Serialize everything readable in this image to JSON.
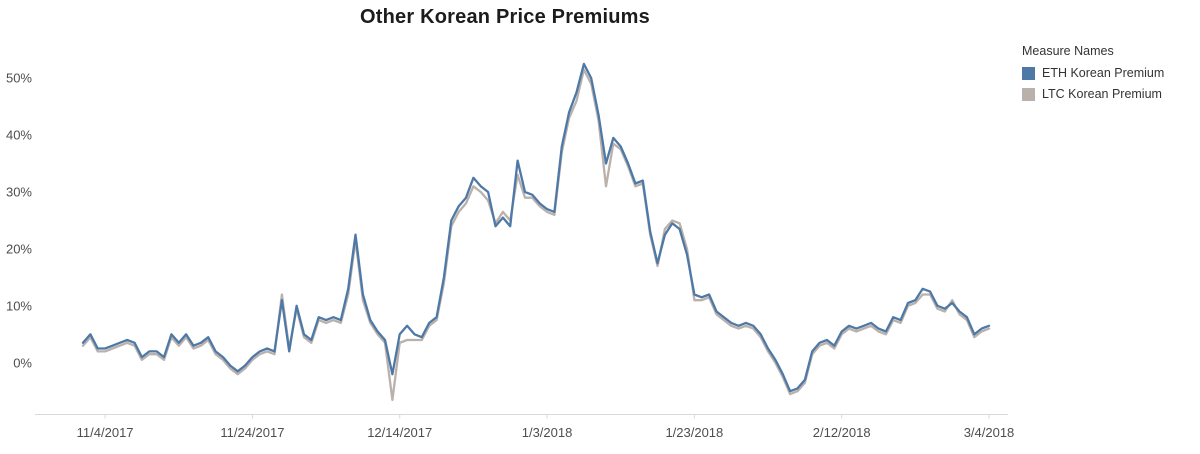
{
  "legend": {
    "title": "Measure Names",
    "items": [
      {
        "label": "ETH Korean Premium",
        "color": "#4e79a7"
      },
      {
        "label": "LTC Korean Premium",
        "color": "#bab0ac"
      }
    ]
  },
  "chart_data": {
    "type": "line",
    "title": "Other Korean Price Premiums",
    "x_start_date": "11/1/2017",
    "x_end_date": "3/4/2018",
    "x_tick_labels": [
      "11/4/2017",
      "11/24/2017",
      "12/14/2017",
      "1/3/2018",
      "1/23/2018",
      "2/12/2018",
      "3/4/2018"
    ],
    "x_tick_indices": [
      3,
      23,
      43,
      63,
      83,
      103,
      123
    ],
    "y_tick_labels": [
      "0%",
      "10%",
      "20%",
      "30%",
      "40%",
      "50%"
    ],
    "y_tick_values": [
      0,
      10,
      20,
      30,
      40,
      50
    ],
    "y_unit": "%",
    "ylim": [
      -9,
      56
    ],
    "grid": false,
    "legend_position": "top-right",
    "series": [
      {
        "name": "ETH Korean Premium",
        "color": "#4e79a7",
        "values": [
          3.5,
          5,
          2.5,
          2.5,
          3,
          3.5,
          4,
          3.5,
          1,
          2,
          2,
          1,
          5,
          3.5,
          5,
          3,
          3.5,
          4.5,
          2,
          1,
          -0.5,
          -1.5,
          -0.5,
          1,
          2,
          2.5,
          2,
          11,
          2,
          10,
          5,
          4,
          8,
          7.5,
          8,
          7.5,
          13,
          22.5,
          12,
          7.5,
          5.5,
          4,
          -2,
          5,
          6.5,
          5,
          4.5,
          7,
          8,
          15,
          25,
          27.5,
          29,
          32.5,
          31,
          30,
          24,
          25.5,
          24,
          35.5,
          30,
          29.5,
          28,
          27,
          26.5,
          38,
          44,
          47.5,
          52.5,
          50,
          43.5,
          35,
          39.5,
          38,
          35,
          31.5,
          32,
          23,
          17.5,
          22.5,
          24.5,
          23.5,
          19,
          12,
          11.5,
          12,
          9,
          8,
          7,
          6.5,
          7,
          6.5,
          5,
          2.5,
          0.5,
          -2,
          -5,
          -4.5,
          -3,
          2,
          3.5,
          4,
          3,
          5.5,
          6.5,
          6,
          6.5,
          7,
          6,
          5.5,
          8,
          7.5,
          10.5,
          11,
          13,
          12.5,
          10,
          9.5,
          10.5,
          9,
          8,
          5,
          6,
          6.5
        ]
      },
      {
        "name": "LTC Korean Premium",
        "color": "#bab0ac",
        "values": [
          3,
          4.5,
          2,
          2,
          2.5,
          3,
          3.5,
          3,
          0.5,
          1.5,
          1.5,
          0.5,
          4.5,
          3,
          4.5,
          2.5,
          3,
          4,
          1.5,
          0.5,
          -1,
          -2,
          -1,
          0.5,
          1.5,
          2,
          1.5,
          12,
          2.5,
          9.5,
          4.5,
          3.5,
          7.5,
          7,
          7.5,
          7,
          12,
          21.5,
          11,
          7,
          5,
          3.5,
          -6.5,
          3.5,
          4,
          4,
          4,
          6.5,
          7.5,
          14,
          24,
          26.5,
          28,
          31,
          30,
          28.5,
          24.5,
          26.5,
          25,
          33,
          29,
          29,
          27.5,
          26.5,
          26,
          37,
          43,
          46,
          51.5,
          49,
          42.5,
          31,
          38.5,
          37.5,
          34.5,
          31,
          31.5,
          22.5,
          17,
          23.5,
          25,
          24.5,
          20,
          11,
          11,
          11.5,
          8.5,
          7.5,
          6.5,
          6,
          6.5,
          6,
          4.5,
          2,
          0,
          -2.5,
          -5.5,
          -5,
          -3.5,
          1.5,
          3,
          3.5,
          2.5,
          5,
          6,
          5.5,
          6,
          6.5,
          5.5,
          5,
          7.5,
          7,
          10,
          10.5,
          12,
          12,
          9.5,
          9,
          11,
          8.5,
          7.5,
          4.5,
          5.5,
          6
        ]
      }
    ]
  }
}
